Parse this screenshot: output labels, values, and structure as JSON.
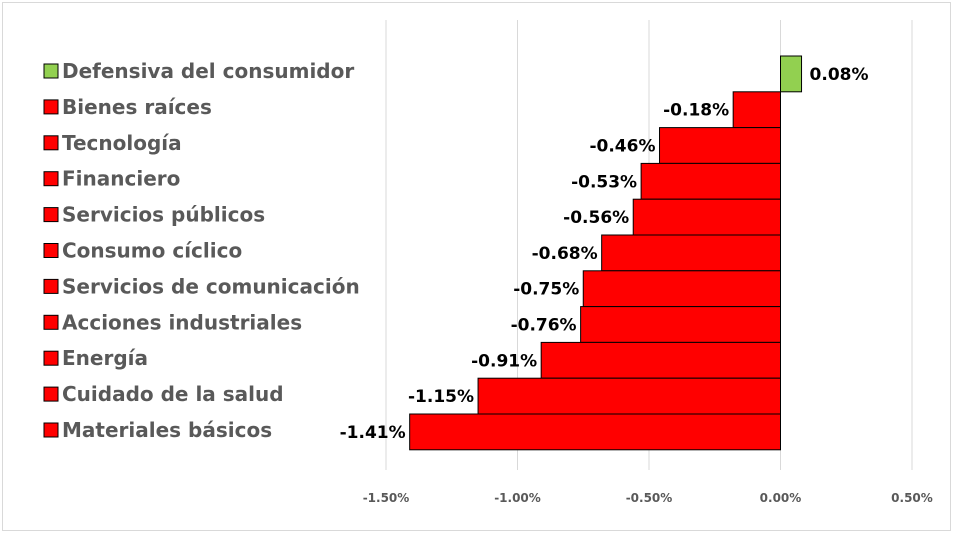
{
  "chart_data": {
    "type": "bar",
    "orientation": "horizontal",
    "categories": [
      "Defensiva del consumidor",
      "Bienes raíces",
      "Tecnología",
      "Financiero",
      "Servicios públicos",
      "Consumo cíclico",
      "Servicios de comunicación",
      "Acciones industriales",
      "Energía",
      "Cuidado de la salud",
      "Materiales básicos"
    ],
    "values": [
      0.08,
      -0.18,
      -0.46,
      -0.53,
      -0.56,
      -0.68,
      -0.75,
      -0.76,
      -0.91,
      -1.15,
      -1.41
    ],
    "value_labels": [
      "0.08%",
      "-0.18%",
      "-0.46%",
      "-0.53%",
      "-0.56%",
      "-0.68%",
      "-0.75%",
      "-0.76%",
      "-0.91%",
      "-1.15%",
      "-1.41%"
    ],
    "unit": "%",
    "xlim": [
      -1.5,
      0.5
    ],
    "xticks": [
      -1.5,
      -1.0,
      -0.5,
      0.0,
      0.5
    ],
    "xtick_labels": [
      "-1.50%",
      "-1.00%",
      "-0.50%",
      "0.00%",
      "0.50%"
    ],
    "grid": "vertical",
    "legend": "left",
    "title": "",
    "xlabel": "",
    "ylabel": "",
    "colors": {
      "positive": "#92d050",
      "negative": "#ff0000",
      "grid": "#d9d9d9"
    }
  }
}
